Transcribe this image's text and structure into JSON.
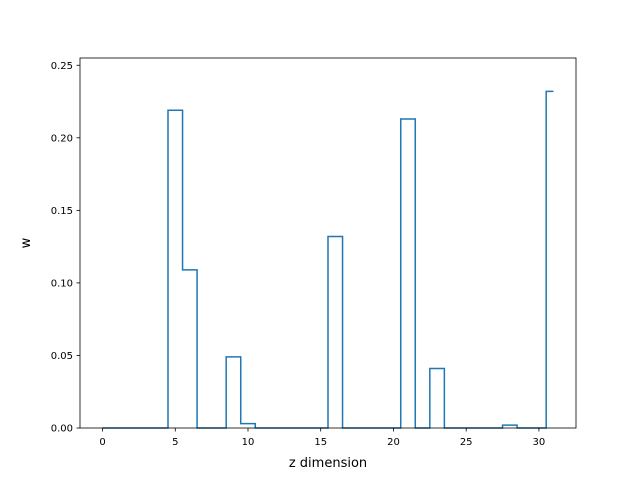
{
  "chart_data": {
    "type": "line",
    "drawstyle": "steps-mid",
    "xlabel": "z dimension",
    "ylabel": "w",
    "xlim": [
      -1.55,
      32.55
    ],
    "ylim": [
      0.0,
      0.255
    ],
    "xticks": [
      0,
      5,
      10,
      15,
      20,
      25,
      30
    ],
    "xtick_labels": [
      "0",
      "5",
      "10",
      "15",
      "20",
      "25",
      "30"
    ],
    "yticks": [
      0.0,
      0.05,
      0.1,
      0.15,
      0.2,
      0.25
    ],
    "ytick_labels": [
      "0.00",
      "0.05",
      "0.10",
      "0.15",
      "0.20",
      "0.25"
    ],
    "grid": false,
    "line_color": "#1f77b4",
    "x": [
      0,
      1,
      2,
      3,
      4,
      5,
      6,
      7,
      8,
      9,
      10,
      11,
      12,
      13,
      14,
      15,
      16,
      17,
      18,
      19,
      20,
      21,
      22,
      23,
      24,
      25,
      26,
      27,
      28,
      29,
      30,
      31
    ],
    "values": [
      0,
      0,
      0,
      0,
      0,
      0.219,
      0.109,
      0,
      0,
      0.049,
      0.003,
      0,
      0,
      0,
      0,
      0,
      0.132,
      0,
      0,
      0,
      0,
      0.213,
      0,
      0.041,
      0,
      0,
      0,
      0,
      0.002,
      0,
      0,
      0.232
    ]
  }
}
